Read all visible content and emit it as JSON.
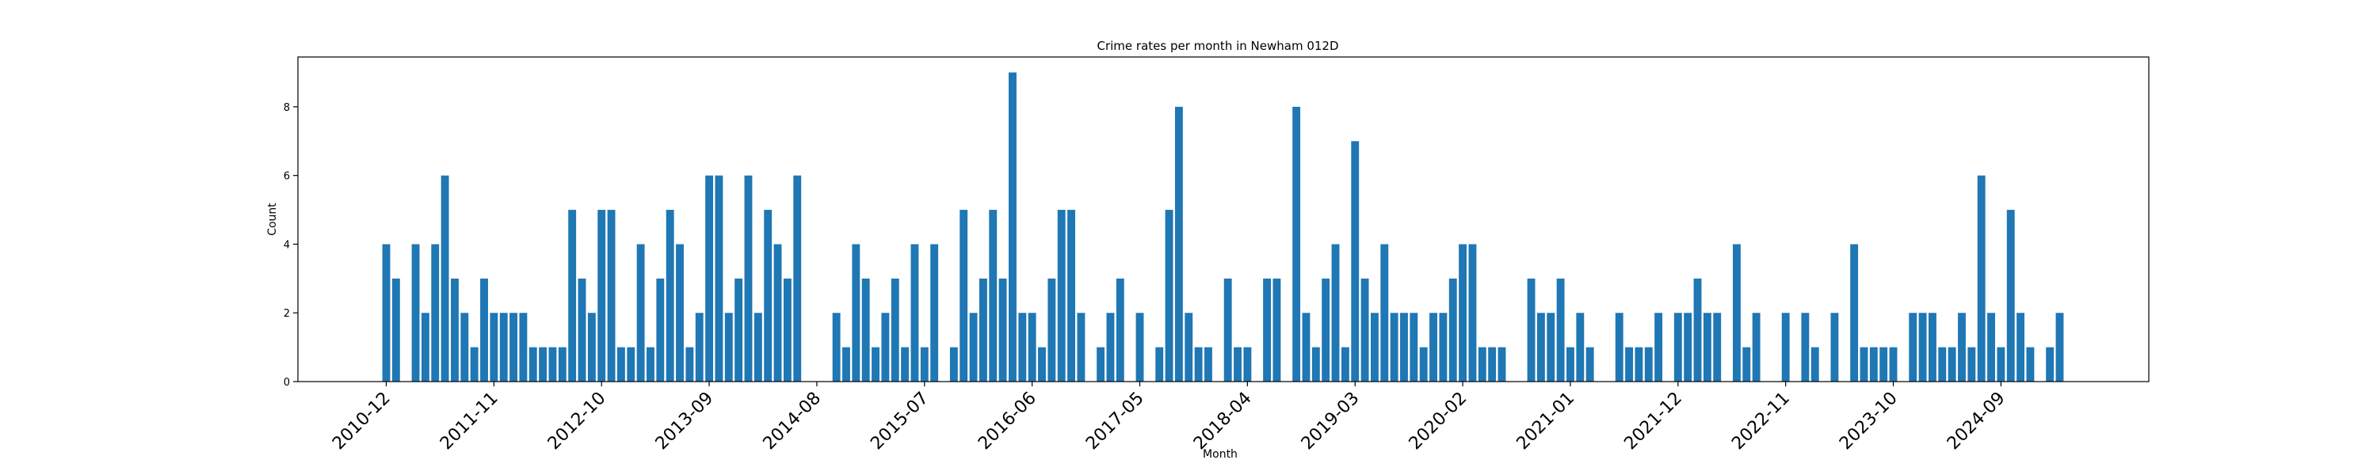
{
  "chart_data": {
    "type": "bar",
    "title": "Crime rates per month in Newham 012D",
    "xlabel": "Month",
    "ylabel": "Count",
    "ylim": [
      0,
      9.45
    ],
    "yticks": [
      0,
      2,
      4,
      6,
      8
    ],
    "xtick_labels": [
      "2010-12",
      "2011-11",
      "2012-10",
      "2013-09",
      "2014-08",
      "2015-07",
      "2016-06",
      "2017-05",
      "2018-04",
      "2019-03",
      "2020-02",
      "2021-01",
      "2021-12",
      "2022-11",
      "2023-10",
      "2024-09"
    ],
    "start_month": "2010-12",
    "color": "#1f77b4",
    "values": [
      4,
      3,
      0,
      4,
      2,
      4,
      6,
      3,
      2,
      1,
      3,
      2,
      2,
      2,
      2,
      1,
      1,
      1,
      1,
      5,
      3,
      2,
      5,
      5,
      1,
      1,
      4,
      1,
      3,
      5,
      4,
      1,
      2,
      6,
      6,
      2,
      3,
      6,
      2,
      5,
      4,
      3,
      6,
      0,
      0,
      0,
      2,
      1,
      4,
      3,
      1,
      2,
      3,
      1,
      4,
      1,
      4,
      0,
      1,
      5,
      2,
      3,
      5,
      3,
      9,
      2,
      2,
      1,
      3,
      5,
      5,
      2,
      0,
      1,
      2,
      3,
      0,
      2,
      0,
      1,
      5,
      8,
      2,
      1,
      1,
      0,
      3,
      1,
      1,
      0,
      3,
      3,
      0,
      8,
      2,
      1,
      3,
      4,
      1,
      7,
      3,
      2,
      4,
      2,
      2,
      2,
      1,
      2,
      2,
      3,
      4,
      4,
      1,
      1,
      1,
      0,
      0,
      3,
      2,
      2,
      3,
      1,
      2,
      1,
      0,
      0,
      2,
      1,
      1,
      1,
      2,
      0,
      2,
      2,
      3,
      2,
      2,
      0,
      4,
      1,
      2,
      0,
      0,
      2,
      0,
      2,
      1,
      0,
      2,
      0,
      4,
      1,
      1,
      1,
      1,
      0,
      2,
      2,
      2,
      1,
      1,
      2,
      1,
      6,
      2,
      1,
      5,
      2,
      1,
      0,
      1,
      2
    ]
  }
}
